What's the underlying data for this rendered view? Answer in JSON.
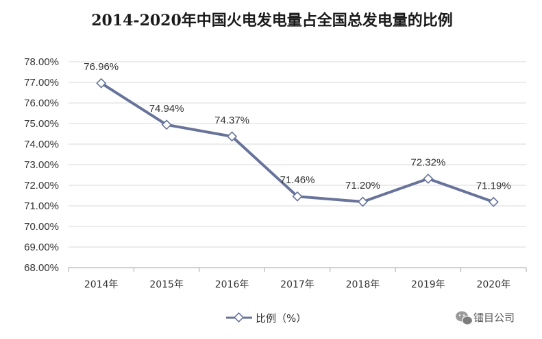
{
  "chart_data": {
    "type": "line",
    "title": "2014-2020年中国火电发电量占全国总发电量的比例",
    "categories": [
      "2014年",
      "2015年",
      "2016年",
      "2017年",
      "2018年",
      "2019年",
      "2020年"
    ],
    "series": [
      {
        "name": "比例（%）",
        "values": [
          76.96,
          74.94,
          74.37,
          71.46,
          71.2,
          72.32,
          71.19
        ],
        "labels": [
          "76.96%",
          "74.94%",
          "74.37%",
          "71.46%",
          "71.20%",
          "72.32%",
          "71.19%"
        ]
      }
    ],
    "ylim": [
      68,
      78
    ],
    "yticks": [
      "78.00%",
      "77.00%",
      "76.00%",
      "75.00%",
      "74.00%",
      "73.00%",
      "72.00%",
      "71.00%",
      "70.00%",
      "69.00%",
      "68.00%"
    ],
    "grid": true,
    "legend_position": "bottom-center",
    "colors": {
      "line": "#67739a",
      "grid": "#d9d9d9",
      "axis": "#a6a6a6"
    }
  },
  "watermark": {
    "text": "镭目公司",
    "icon": "wechat-icon"
  }
}
